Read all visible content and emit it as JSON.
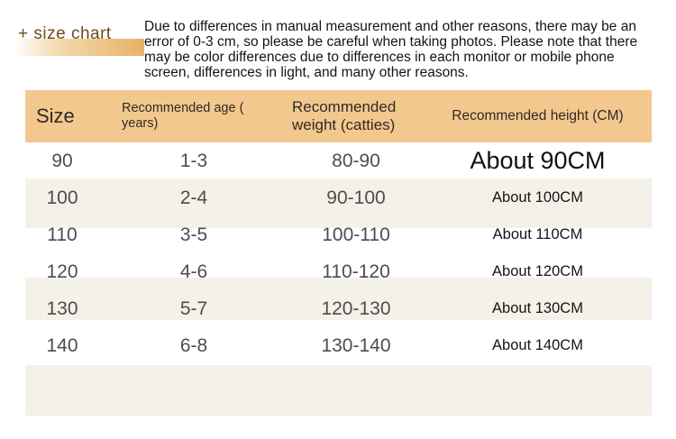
{
  "heading": {
    "label": "+ size chart"
  },
  "disclaimer": {
    "lines": [
      "Due to differences in manual measurement and other reasons, there may be an",
      "error of 0-3 cm, so please be careful when taking photos. Please note that there",
      "may be color differences due to differences in each monitor or mobile phone",
      "screen, differences in light, and many other reasons."
    ]
  },
  "table": {
    "headers": [
      "Size",
      "Recommended age (\nyears)",
      "Recommended\nweight (catties)",
      "Recommended height (CM)"
    ],
    "rows": [
      {
        "size": "90",
        "age": "1-3",
        "weight": "80-90",
        "height": "About 90CM"
      },
      {
        "size": "100",
        "age": "2-4",
        "weight": "90-100",
        "height": "About 100CM"
      },
      {
        "size": "110",
        "age": "3-5",
        "weight": "100-110",
        "height": "About 110CM"
      },
      {
        "size": "120",
        "age": "4-6",
        "weight": "110-120",
        "height": "About 120CM"
      },
      {
        "size": "130",
        "age": "5-7",
        "weight": "120-130",
        "height": "About 130CM"
      },
      {
        "size": "140",
        "age": "6-8",
        "weight": "130-140",
        "height": "About 140CM"
      }
    ]
  },
  "colors": {
    "header_bg": "#f3c88e",
    "stripe_bg": "#f4f1e9",
    "ribbon_orange": "#e8b166",
    "heading_text": "#6f4b1e",
    "number_text": "#4d4d4d",
    "body_text": "#141414"
  }
}
